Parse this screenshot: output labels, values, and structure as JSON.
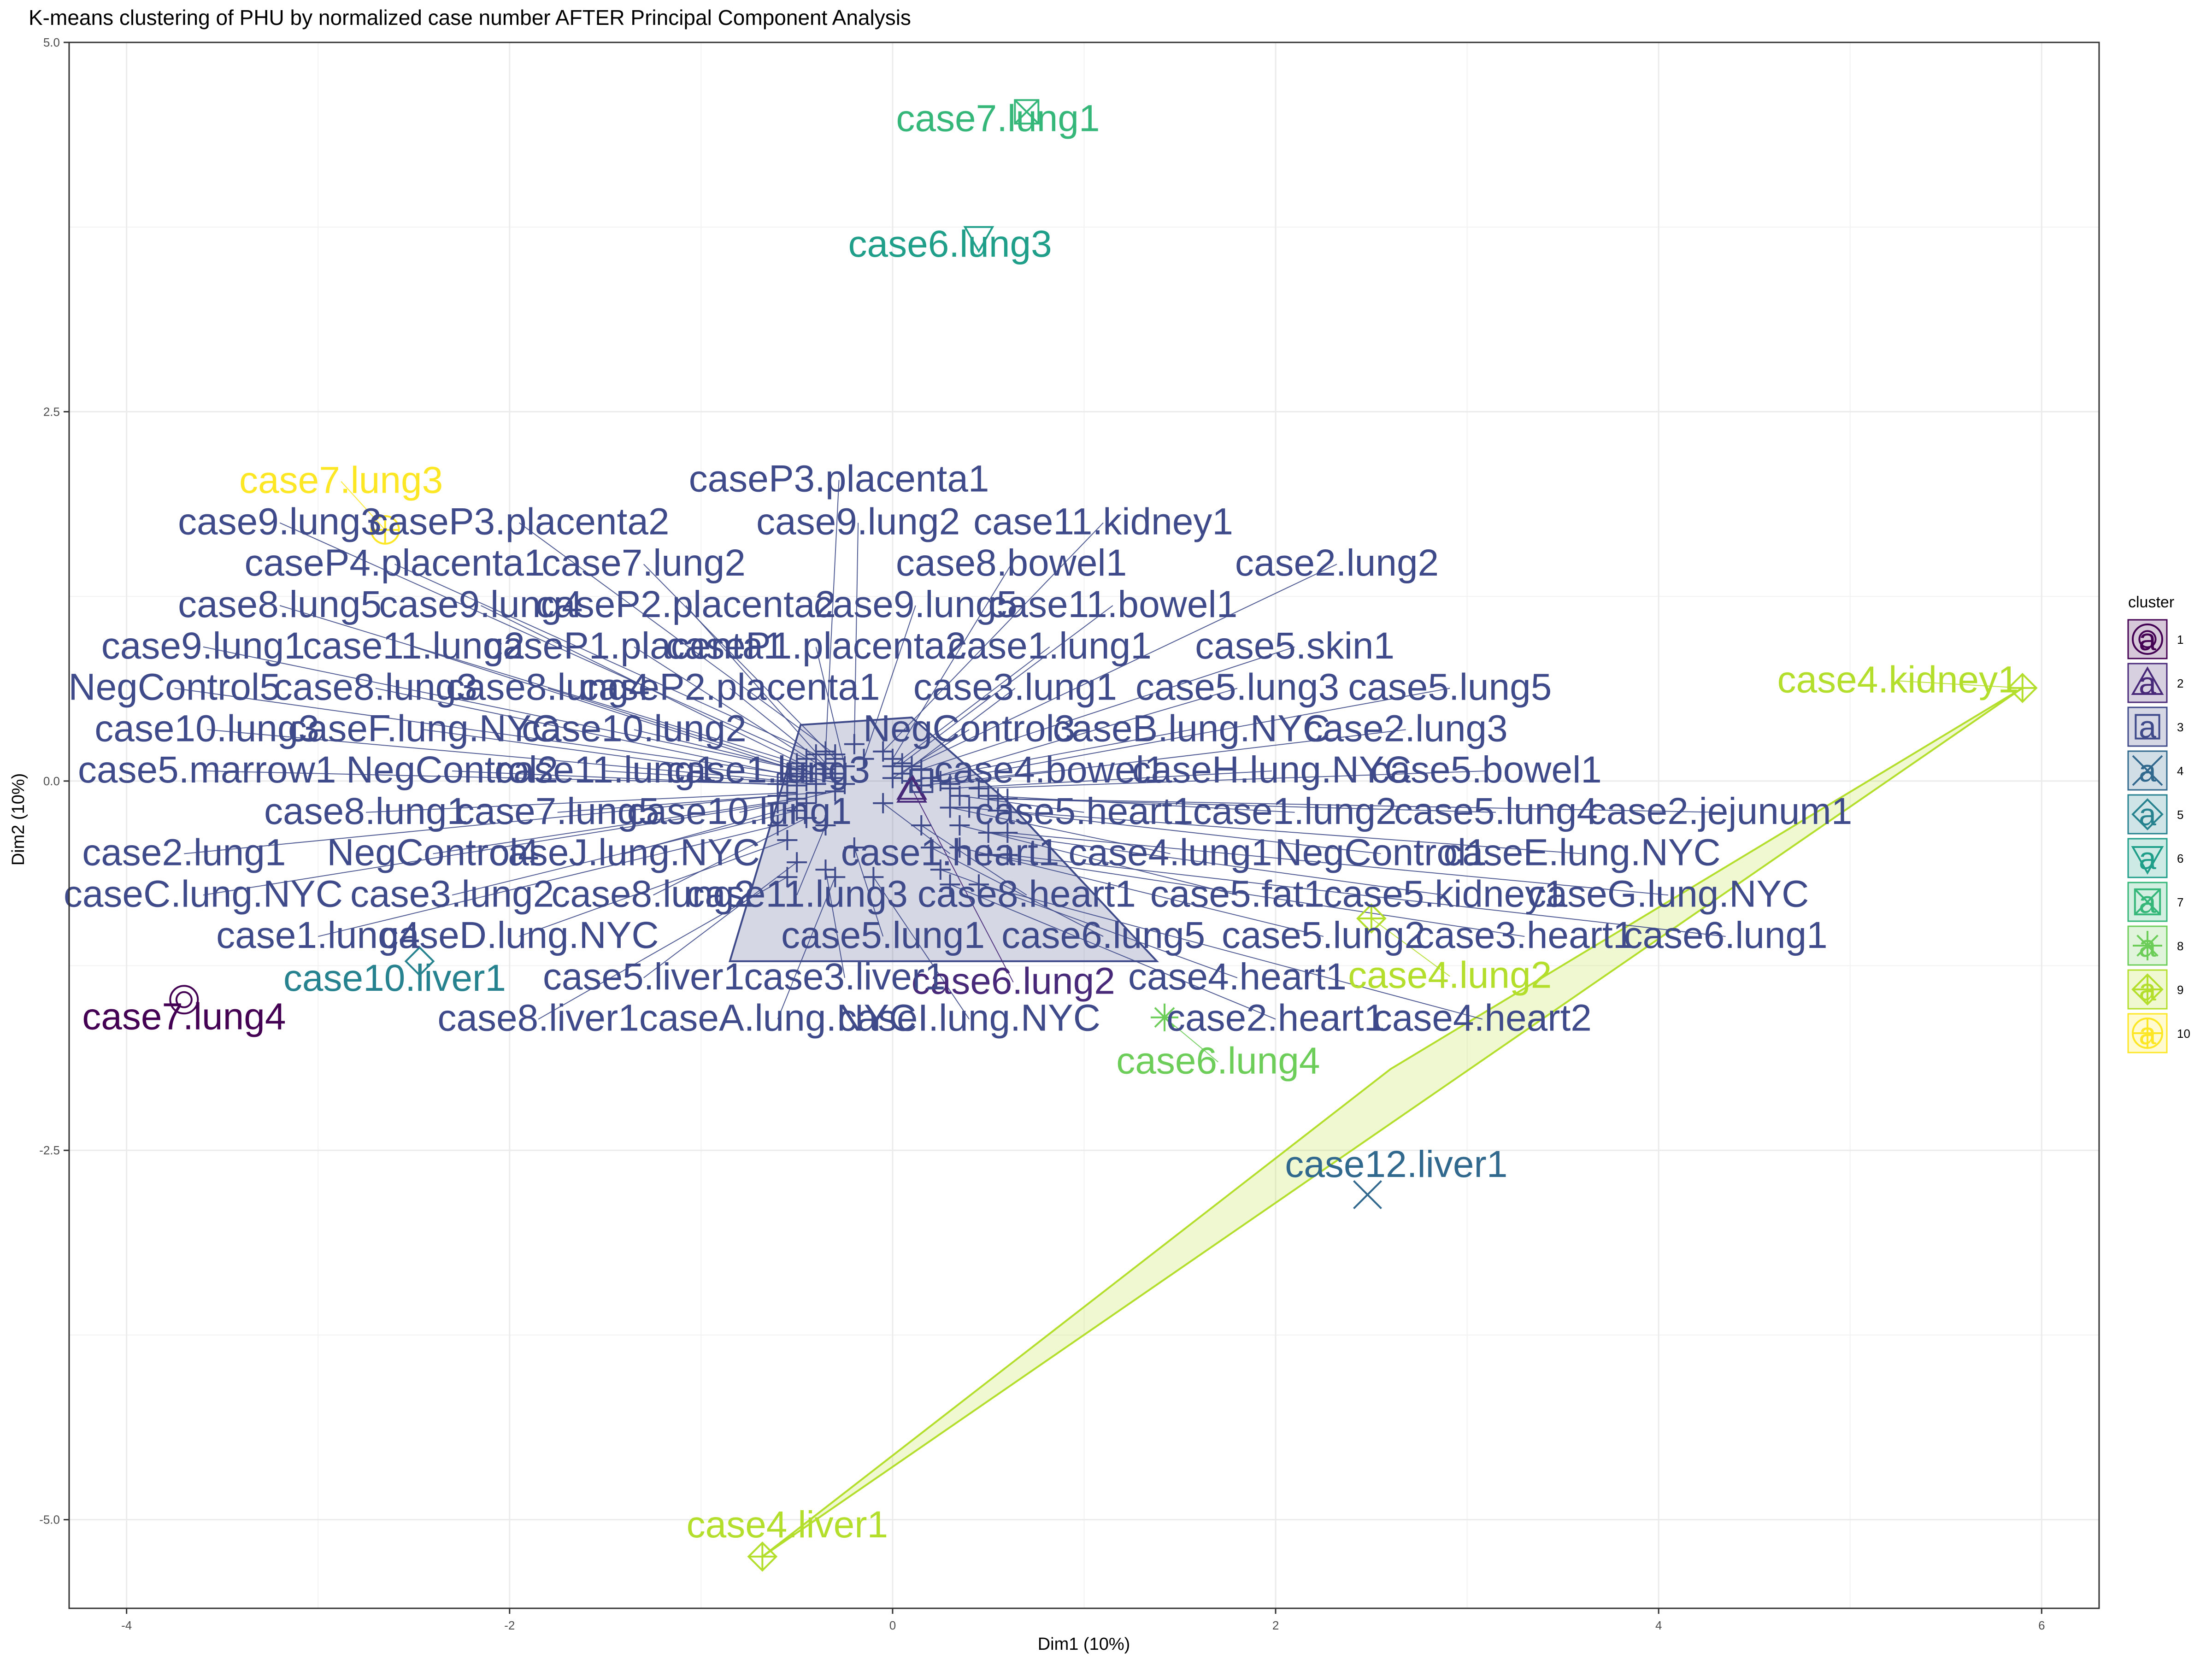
{
  "chart_data": {
    "type": "scatter",
    "title": "K-means clustering of PHU by normalized case number AFTER Principal Component Analysis",
    "xlabel": "Dim1 (10%)",
    "ylabel": "Dim2 (10%)",
    "xlim": [
      -4.3,
      6.3
    ],
    "ylim": [
      -5.6,
      5.0
    ],
    "xticks": [
      -4,
      -2,
      0,
      2,
      4,
      6
    ],
    "xtick_labels": [
      "-4",
      "-2",
      "0",
      "2",
      "4",
      "6"
    ],
    "yticks": [
      -5.0,
      -2.5,
      0.0,
      2.5,
      5.0
    ],
    "ytick_labels": [
      "-5.0",
      "-2.5",
      "0.0",
      "2.5",
      "5.0"
    ],
    "grid": true,
    "legend": {
      "title": "cluster",
      "position": "right",
      "entries": [
        "1",
        "2",
        "3",
        "4",
        "5",
        "6",
        "7",
        "8",
        "9",
        "10"
      ]
    },
    "cluster_colors": [
      "#440154",
      "#482878",
      "#3E4A89",
      "#31688E",
      "#26828E",
      "#1F9E89",
      "#35B779",
      "#6DCD59",
      "#B4DE2C",
      "#FDE725"
    ],
    "cluster_shapes": [
      "circle-ring",
      "triangle",
      "square",
      "x",
      "diamond",
      "triangle-down",
      "square-x",
      "asterisk",
      "diamond-plus",
      "circle-plus"
    ],
    "cluster_center": [
      0.05,
      0.05
    ],
    "hull_cluster3": [
      [
        -0.85,
        -1.22
      ],
      [
        -0.48,
        0.38
      ],
      [
        0.1,
        0.43
      ],
      [
        0.6,
        -0.14
      ],
      [
        1.38,
        -1.22
      ]
    ],
    "hull_cluster9": [
      [
        -0.68,
        -5.25
      ],
      [
        5.9,
        0.63
      ],
      [
        2.6,
        -1.95
      ]
    ],
    "points": [
      {
        "label": "case7.lung4",
        "cluster": 1,
        "x": -3.7,
        "y": -1.48,
        "lx": -3.7,
        "ly": -1.68
      },
      {
        "label": "case6.lung2",
        "cluster": 2,
        "x": 0.1,
        "y": -0.05,
        "lx": 0.63,
        "ly": -1.44
      },
      {
        "label": "case12.liver1",
        "cluster": 4,
        "x": 2.48,
        "y": -2.8,
        "lx": 2.63,
        "ly": -2.68
      },
      {
        "label": "case10.liver1",
        "cluster": 5,
        "x": -2.47,
        "y": -1.22,
        "lx": -2.6,
        "ly": -1.42
      },
      {
        "label": "case6.lung3",
        "cluster": 6,
        "x": 0.45,
        "y": 3.68,
        "lx": 0.3,
        "ly": 3.55
      },
      {
        "label": "case7.lung1",
        "cluster": 7,
        "x": 0.7,
        "y": 4.53,
        "lx": 0.55,
        "ly": 4.4
      },
      {
        "label": "case6.lung4",
        "cluster": 8,
        "x": 1.42,
        "y": -1.6,
        "lx": 1.7,
        "ly": -1.98
      },
      {
        "label": "case4.kidney1",
        "cluster": 9,
        "x": 5.9,
        "y": 0.63,
        "lx": 5.25,
        "ly": 0.6
      },
      {
        "label": "case4.lung2",
        "cluster": 9,
        "x": 2.5,
        "y": -0.93,
        "lx": 2.91,
        "ly": -1.4
      },
      {
        "label": "case4.liver1",
        "cluster": 9,
        "x": -0.68,
        "y": -5.25,
        "lx": -0.55,
        "ly": -5.12
      },
      {
        "label": "case7.lung3",
        "cluster": 10,
        "x": -2.65,
        "y": 1.7,
        "lx": -2.88,
        "ly": 1.95
      },
      {
        "label": "caseP3.placenta1",
        "cluster": 3,
        "x": -0.35,
        "y": 0.2,
        "lx": -0.28,
        "ly": 1.96
      },
      {
        "label": "case9.lung3",
        "cluster": 3,
        "x": -0.45,
        "y": 0.15,
        "lx": -3.2,
        "ly": 1.67
      },
      {
        "label": "caseP3.placenta2",
        "cluster": 3,
        "x": -0.3,
        "y": 0.18,
        "lx": -1.95,
        "ly": 1.67
      },
      {
        "label": "case9.lung2",
        "cluster": 3,
        "x": -0.2,
        "y": 0.25,
        "lx": -0.18,
        "ly": 1.67
      },
      {
        "label": "case11.kidney1",
        "cluster": 3,
        "x": -0.05,
        "y": 0.2,
        "lx": 1.1,
        "ly": 1.67
      },
      {
        "label": "caseP4.placenta1",
        "cluster": 3,
        "x": -0.4,
        "y": 0.18,
        "lx": -2.6,
        "ly": 1.39
      },
      {
        "label": "case7.lung2",
        "cluster": 3,
        "x": -0.3,
        "y": 0.15,
        "lx": -1.3,
        "ly": 1.39
      },
      {
        "label": "case8.bowel1",
        "cluster": 3,
        "x": 0.0,
        "y": 0.15,
        "lx": 0.62,
        "ly": 1.39
      },
      {
        "label": "case2.lung2",
        "cluster": 3,
        "x": 0.1,
        "y": 0.1,
        "lx": 2.32,
        "ly": 1.39
      },
      {
        "label": "case8.lung5",
        "cluster": 3,
        "x": -0.5,
        "y": 0.12,
        "lx": -3.2,
        "ly": 1.11
      },
      {
        "label": "case9.lung4",
        "cluster": 3,
        "x": -0.45,
        "y": 0.1,
        "lx": -2.15,
        "ly": 1.11
      },
      {
        "label": "caseP2.placenta2",
        "cluster": 3,
        "x": -0.35,
        "y": 0.12,
        "lx": -1.08,
        "ly": 1.11
      },
      {
        "label": "case9.lung5",
        "cluster": 3,
        "x": -0.15,
        "y": 0.15,
        "lx": 0.12,
        "ly": 1.11
      },
      {
        "label": "case11.bowel1",
        "cluster": 3,
        "x": 0.05,
        "y": 0.12,
        "lx": 1.15,
        "ly": 1.11
      },
      {
        "label": "case9.lung1",
        "cluster": 3,
        "x": -0.5,
        "y": 0.08,
        "lx": -3.6,
        "ly": 0.83
      },
      {
        "label": "case11.lung2",
        "cluster": 3,
        "x": -0.45,
        "y": 0.05,
        "lx": -2.5,
        "ly": 0.83
      },
      {
        "label": "caseP1.placenta1",
        "cluster": 3,
        "x": -0.35,
        "y": 0.08,
        "lx": -1.35,
        "ly": 0.83
      },
      {
        "label": "caseP1.placenta2",
        "cluster": 3,
        "x": -0.25,
        "y": 0.1,
        "lx": -0.4,
        "ly": 0.83
      },
      {
        "label": "case1.lung1",
        "cluster": 3,
        "x": 0.0,
        "y": 0.1,
        "lx": 0.82,
        "ly": 0.83
      },
      {
        "label": "case5.skin1",
        "cluster": 3,
        "x": 0.15,
        "y": 0.08,
        "lx": 2.1,
        "ly": 0.83
      },
      {
        "label": "NegControl5",
        "cluster": 3,
        "x": -0.55,
        "y": 0.05,
        "lx": -3.75,
        "ly": 0.55
      },
      {
        "label": "case8.lung3",
        "cluster": 3,
        "x": -0.5,
        "y": 0.03,
        "lx": -2.7,
        "ly": 0.55
      },
      {
        "label": "case8.lung4",
        "cluster": 3,
        "x": -0.4,
        "y": 0.05,
        "lx": -1.8,
        "ly": 0.55
      },
      {
        "label": "caseP2.placenta1",
        "cluster": 3,
        "x": -0.3,
        "y": 0.05,
        "lx": -0.85,
        "ly": 0.55
      },
      {
        "label": "case3.lung1",
        "cluster": 3,
        "x": 0.05,
        "y": 0.05,
        "lx": 0.64,
        "ly": 0.55
      },
      {
        "label": "case5.lung3",
        "cluster": 3,
        "x": 0.2,
        "y": 0.02,
        "lx": 1.8,
        "ly": 0.55
      },
      {
        "label": "case5.lung5",
        "cluster": 3,
        "x": 0.25,
        "y": 0.0,
        "lx": 2.91,
        "ly": 0.55
      },
      {
        "label": "case10.lung3",
        "cluster": 3,
        "x": -0.55,
        "y": 0.0,
        "lx": -3.58,
        "ly": 0.27
      },
      {
        "label": "caseF.lung.NYC",
        "cluster": 3,
        "x": -0.45,
        "y": 0.0,
        "lx": -2.45,
        "ly": 0.27
      },
      {
        "label": "case10.lung2",
        "cluster": 3,
        "x": -0.3,
        "y": 0.02,
        "lx": -1.35,
        "ly": 0.27
      },
      {
        "label": "NegControl3",
        "cluster": 3,
        "x": 0.0,
        "y": 0.02,
        "lx": 0.4,
        "ly": 0.27
      },
      {
        "label": "caseB.lung.NYC",
        "cluster": 3,
        "x": 0.1,
        "y": 0.0,
        "lx": 1.56,
        "ly": 0.27
      },
      {
        "label": "case2.lung3",
        "cluster": 3,
        "x": 0.3,
        "y": -0.02,
        "lx": 2.68,
        "ly": 0.27
      },
      {
        "label": "case5.marrow1",
        "cluster": 3,
        "x": -0.6,
        "y": -0.02,
        "lx": -3.58,
        "ly": -0.01
      },
      {
        "label": "NegControl2",
        "cluster": 3,
        "x": -0.5,
        "y": -0.03,
        "lx": -2.3,
        "ly": -0.01
      },
      {
        "label": "case11.lung1",
        "cluster": 3,
        "x": -0.4,
        "y": -0.02,
        "lx": -1.5,
        "ly": -0.01
      },
      {
        "label": "case1.lung3",
        "cluster": 3,
        "x": -0.25,
        "y": -0.02,
        "lx": -0.65,
        "ly": -0.01
      },
      {
        "label": "case4.bowel1",
        "cluster": 3,
        "x": 0.15,
        "y": -0.03,
        "lx": 0.82,
        "ly": -0.01
      },
      {
        "label": "caseH.lung.NYC",
        "cluster": 3,
        "x": 0.3,
        "y": -0.05,
        "lx": 1.98,
        "ly": -0.01
      },
      {
        "label": "case5.bowel1",
        "cluster": 3,
        "x": 0.45,
        "y": -0.05,
        "lx": 3.1,
        "ly": -0.01
      },
      {
        "label": "case8.lung1",
        "cluster": 3,
        "x": -0.55,
        "y": -0.08,
        "lx": -2.75,
        "ly": -0.29
      },
      {
        "label": "case7.lung5",
        "cluster": 3,
        "x": -0.4,
        "y": -0.08,
        "lx": -1.75,
        "ly": -0.29
      },
      {
        "label": "case10.lung1",
        "cluster": 3,
        "x": -0.3,
        "y": -0.07,
        "lx": -0.8,
        "ly": -0.29
      },
      {
        "label": "case5.heart1",
        "cluster": 3,
        "x": 0.35,
        "y": -0.1,
        "lx": 1.0,
        "ly": -0.29
      },
      {
        "label": "case1.lung2",
        "cluster": 3,
        "x": 0.5,
        "y": -0.1,
        "lx": 2.1,
        "ly": -0.29
      },
      {
        "label": "case5.lung4",
        "cluster": 3,
        "x": 0.55,
        "y": -0.12,
        "lx": 3.15,
        "ly": -0.29
      },
      {
        "label": "case2.jejunum1",
        "cluster": 3,
        "x": 0.6,
        "y": -0.12,
        "lx": 4.32,
        "ly": -0.29
      },
      {
        "label": "case2.lung1",
        "cluster": 3,
        "x": -0.6,
        "y": -0.1,
        "lx": -3.7,
        "ly": -0.57
      },
      {
        "label": "NegControl4",
        "cluster": 3,
        "x": -0.5,
        "y": -0.12,
        "lx": -2.4,
        "ly": -0.57
      },
      {
        "label": "caseJ.lung.NYC",
        "cluster": 3,
        "x": -0.45,
        "y": -0.15,
        "lx": -1.4,
        "ly": -0.57
      },
      {
        "label": "case1.heart1",
        "cluster": 3,
        "x": -0.05,
        "y": -0.15,
        "lx": 0.3,
        "ly": -0.57
      },
      {
        "label": "case4.lung1",
        "cluster": 3,
        "x": 0.3,
        "y": -0.18,
        "lx": 1.45,
        "ly": -0.57
      },
      {
        "label": "NegControl1",
        "cluster": 3,
        "x": 0.4,
        "y": -0.18,
        "lx": 2.55,
        "ly": -0.57
      },
      {
        "label": "caseE.lung.NYC",
        "cluster": 3,
        "x": 0.55,
        "y": -0.2,
        "lx": 3.6,
        "ly": -0.57
      },
      {
        "label": "caseC.lung.NYC",
        "cluster": 3,
        "x": -0.6,
        "y": -0.15,
        "lx": -3.6,
        "ly": -0.85
      },
      {
        "label": "case3.lung2",
        "cluster": 3,
        "x": -0.5,
        "y": -0.2,
        "lx": -2.3,
        "ly": -0.85
      },
      {
        "label": "case8.lung2",
        "cluster": 3,
        "x": -0.45,
        "y": -0.25,
        "lx": -1.25,
        "ly": -0.85
      },
      {
        "label": "case11.lung3",
        "cluster": 3,
        "x": -0.35,
        "y": -0.3,
        "lx": -0.5,
        "ly": -0.85
      },
      {
        "label": "case8.heart1",
        "cluster": 3,
        "x": 0.15,
        "y": -0.3,
        "lx": 0.7,
        "ly": -0.85
      },
      {
        "label": "case5.fat1",
        "cluster": 3,
        "x": 0.35,
        "y": -0.3,
        "lx": 1.8,
        "ly": -0.85
      },
      {
        "label": "case5.kidney1",
        "cluster": 3,
        "x": 0.5,
        "y": -0.35,
        "lx": 2.88,
        "ly": -0.85
      },
      {
        "label": "caseG.lung.NYC",
        "cluster": 3,
        "x": 0.6,
        "y": -0.35,
        "lx": 4.05,
        "ly": -0.85
      },
      {
        "label": "case1.lung4",
        "cluster": 3,
        "x": -0.6,
        "y": -0.3,
        "lx": -3.0,
        "ly": -1.13
      },
      {
        "label": "caseD.lung.NYC",
        "cluster": 3,
        "x": -0.55,
        "y": -0.4,
        "lx": -1.95,
        "ly": -1.13
      },
      {
        "label": "case5.lung1",
        "cluster": 3,
        "x": -0.2,
        "y": -0.45,
        "lx": -0.05,
        "ly": -1.13
      },
      {
        "label": "case6.lung5",
        "cluster": 3,
        "x": 0.2,
        "y": -0.45,
        "lx": 1.1,
        "ly": -1.13
      },
      {
        "label": "case5.lung2",
        "cluster": 3,
        "x": 0.35,
        "y": -0.45,
        "lx": 2.25,
        "ly": -1.13
      },
      {
        "label": "case3.heart1",
        "cluster": 3,
        "x": 0.5,
        "y": -0.5,
        "lx": 3.3,
        "ly": -1.13
      },
      {
        "label": "case6.lung1",
        "cluster": 3,
        "x": 0.6,
        "y": -0.5,
        "lx": 4.35,
        "ly": -1.13
      },
      {
        "label": "case5.liver1",
        "cluster": 3,
        "x": -0.5,
        "y": -0.55,
        "lx": -1.3,
        "ly": -1.41
      },
      {
        "label": "case3.liver1",
        "cluster": 3,
        "x": -0.35,
        "y": -0.6,
        "lx": -0.25,
        "ly": -1.41
      },
      {
        "label": "case4.heart1",
        "cluster": 3,
        "x": 0.25,
        "y": -0.6,
        "lx": 1.8,
        "ly": -1.41
      },
      {
        "label": "case8.liver1",
        "cluster": 3,
        "x": -0.55,
        "y": -0.65,
        "lx": -1.85,
        "ly": -1.69
      },
      {
        "label": "caseA.lung.NYC",
        "cluster": 3,
        "x": -0.3,
        "y": -0.65,
        "lx": -0.6,
        "ly": -1.69
      },
      {
        "label": "caseI.lung.NYC",
        "cluster": 3,
        "x": -0.1,
        "y": -0.65,
        "lx": 0.4,
        "ly": -1.69
      },
      {
        "label": "case2.heart1",
        "cluster": 3,
        "x": 0.3,
        "y": -0.7,
        "lx": 2.0,
        "ly": -1.69
      },
      {
        "label": "case4.heart2",
        "cluster": 3,
        "x": 0.45,
        "y": -0.7,
        "lx": 3.08,
        "ly": -1.69
      }
    ]
  }
}
